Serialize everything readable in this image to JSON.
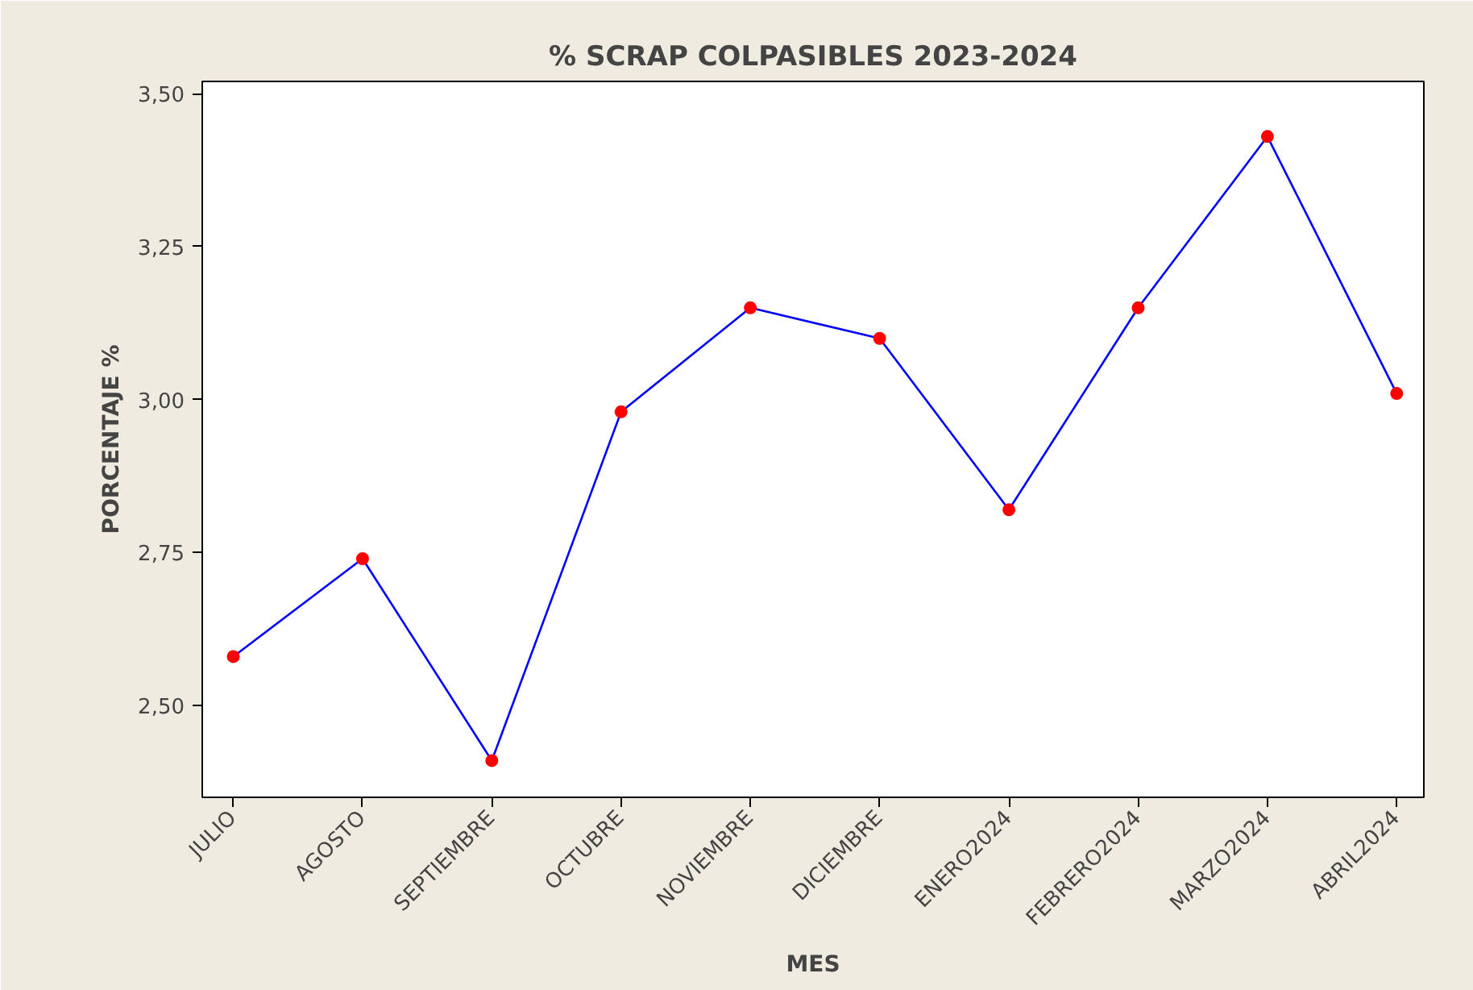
{
  "chart_data": {
    "type": "line",
    "title": "% SCRAP COLPASIBLES 2023-2024",
    "xlabel": "MES",
    "ylabel": "PORCENTAJE %",
    "categories": [
      "JULIO",
      "AGOSTO",
      "SEPTIEMBRE",
      "OCTUBRE",
      "NOVIEMBRE",
      "DICIEMBRE",
      "ENERO2024",
      "FEBRERO2024",
      "MARZO2024",
      "ABRIL2024"
    ],
    "series": [
      {
        "color": "#0000ff",
        "values": [
          2.58,
          2.74,
          2.41,
          2.98,
          3.15,
          3.1,
          2.82,
          3.15,
          3.43,
          3.01
        ]
      }
    ],
    "marker": "circle",
    "line_style": "solid",
    "grid": false,
    "ylim": [
      2.35,
      3.52
    ],
    "yticks": [
      {
        "value": 2.5,
        "label": "2,50"
      },
      {
        "value": 2.75,
        "label": "2,75"
      },
      {
        "value": 3.0,
        "label": "3,00"
      },
      {
        "value": 3.25,
        "label": "3,25"
      },
      {
        "value": 3.5,
        "label": "3,50"
      }
    ]
  }
}
